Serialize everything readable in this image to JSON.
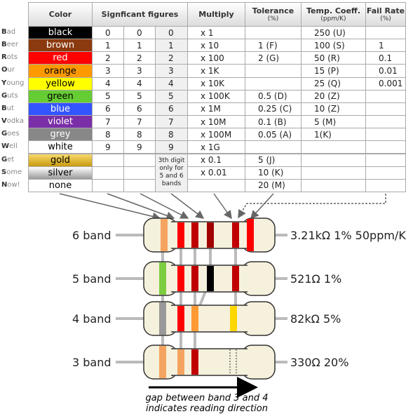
{
  "mnemonic": [
    "Bad",
    "Beer",
    "Rots",
    "Our",
    "Young",
    "Guts",
    "But",
    "Vodka",
    "Goes",
    "Well",
    "Get",
    "Some",
    "Now!"
  ],
  "header": {
    "color": "Color",
    "significant": "Signficant figures",
    "multiply": "Multiply",
    "tolerance": "Tolerance",
    "tolerance_unit": "(%)",
    "temp": "Temp. Coeff.",
    "temp_unit": "(ppm/K)",
    "fail": "Fail Rate",
    "fail_unit": "(%)"
  },
  "rows": [
    [
      "black",
      "0",
      "0",
      "0",
      "x 1",
      null,
      "250 (U)",
      null
    ],
    [
      "brown",
      "1",
      "1",
      "1",
      "x 10",
      "1 (F)",
      "100 (S)",
      "1"
    ],
    [
      "red",
      "2",
      "2",
      "2",
      "x 100",
      "2 (G)",
      "50 (R)",
      "0.1"
    ],
    [
      "orange",
      "3",
      "3",
      "3",
      "x 1K",
      null,
      "15 (P)",
      "0.01"
    ],
    [
      "yellow",
      "4",
      "4",
      "4",
      "x 10K",
      null,
      "25 (Q)",
      "0.001"
    ],
    [
      "green",
      "5",
      "5",
      "5",
      "x 100K",
      "0.5 (D)",
      "20 (Z)",
      null
    ],
    [
      "blue",
      "6",
      "6",
      "6",
      "x 1M",
      "0.25 (C)",
      "10 (Z)",
      null
    ],
    [
      "violet",
      "7",
      "7",
      "7",
      "x 10M",
      "0.1 (B)",
      "5 (M)",
      null
    ],
    [
      "grey",
      "8",
      "8",
      "8",
      "x 100M",
      "0.05 (A)",
      "1(K)",
      null
    ],
    [
      "white",
      "9",
      "9",
      "9",
      "x 1G",
      null,
      null,
      null
    ],
    [
      "gold",
      null,
      null,
      null,
      "x 0.1",
      "5 (J)",
      null,
      null
    ],
    [
      "silver",
      null,
      null,
      null,
      "x 0.01",
      "10 (K)",
      null,
      null
    ],
    [
      "none",
      null,
      null,
      null,
      null,
      "20 (M)",
      null,
      null
    ]
  ],
  "note": "3th digit only for 5 and 6 bands",
  "bands": [
    {
      "label": "6 band",
      "value": "3.21kΩ 1% 50ppm/K"
    },
    {
      "label": "5 band",
      "value": "521Ω 1%"
    },
    {
      "label": "4 band",
      "value": "82kΩ 5%"
    },
    {
      "label": "3 band",
      "value": "330Ω 20%"
    }
  ],
  "caption": [
    "gap between band 3 and 4",
    "indicates reading direction"
  ]
}
